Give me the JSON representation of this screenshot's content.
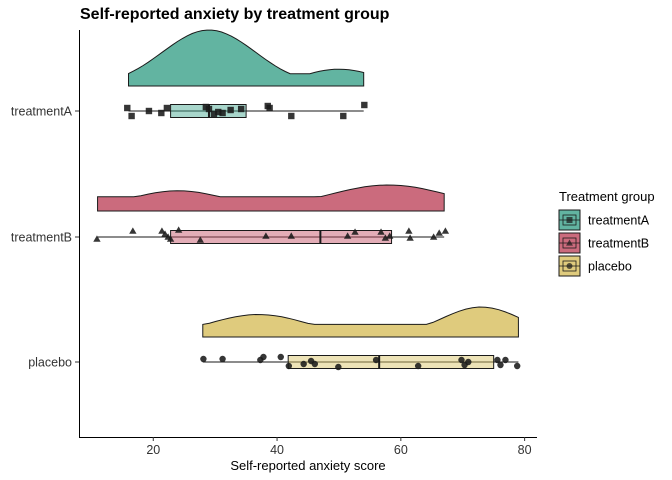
{
  "chart_data": {
    "type": "raincloud",
    "title": "Self-reported anxiety by treatment group",
    "xlabel": "Self-reported anxiety score",
    "ylabel": "",
    "xlim": [
      8,
      82
    ],
    "x_ticks": [
      20,
      40,
      60,
      80
    ],
    "grid": false,
    "legend_position": "right",
    "legend_title": "Treatment group",
    "groups": [
      {
        "name": "treatmentA",
        "color": "#3fa38c",
        "shape": "square",
        "min": 16,
        "q1": 22.8,
        "median": 29,
        "q3": 35,
        "max": 54,
        "density_peak": 29,
        "points": [
          15.8,
          16.5,
          19.3,
          21.3,
          22.2,
          28.5,
          29.0,
          29.8,
          30.5,
          31.2,
          32.5,
          34.2,
          38.5,
          38.8,
          42.3,
          50.7,
          54.1
        ]
      },
      {
        "name": "treatmentB",
        "color": "#c04a60",
        "shape": "triangle",
        "min": 11,
        "q1": 22.8,
        "median": 47,
        "q3": 58.5,
        "max": 67,
        "density_peak": 40,
        "points": [
          10.9,
          16.7,
          21.4,
          21.9,
          22.4,
          22.8,
          24.1,
          27.6,
          38.2,
          42.3,
          51.4,
          52.6,
          56.8,
          57.5,
          58.2,
          61.3,
          61.5,
          65.3,
          66.2,
          67.2
        ]
      },
      {
        "name": "placebo",
        "color": "#d8c060",
        "shape": "circle",
        "min": 28,
        "q1": 41.8,
        "median": 56.5,
        "q3": 75,
        "max": 79,
        "density_peak": 74,
        "points": [
          28.1,
          31.2,
          37.3,
          37.8,
          40.6,
          41.9,
          44.3,
          45.5,
          46.1,
          49.9,
          56.0,
          62.8,
          69.8,
          70.3,
          70.9,
          75.6,
          76.1,
          76.9,
          78.8
        ]
      }
    ]
  }
}
